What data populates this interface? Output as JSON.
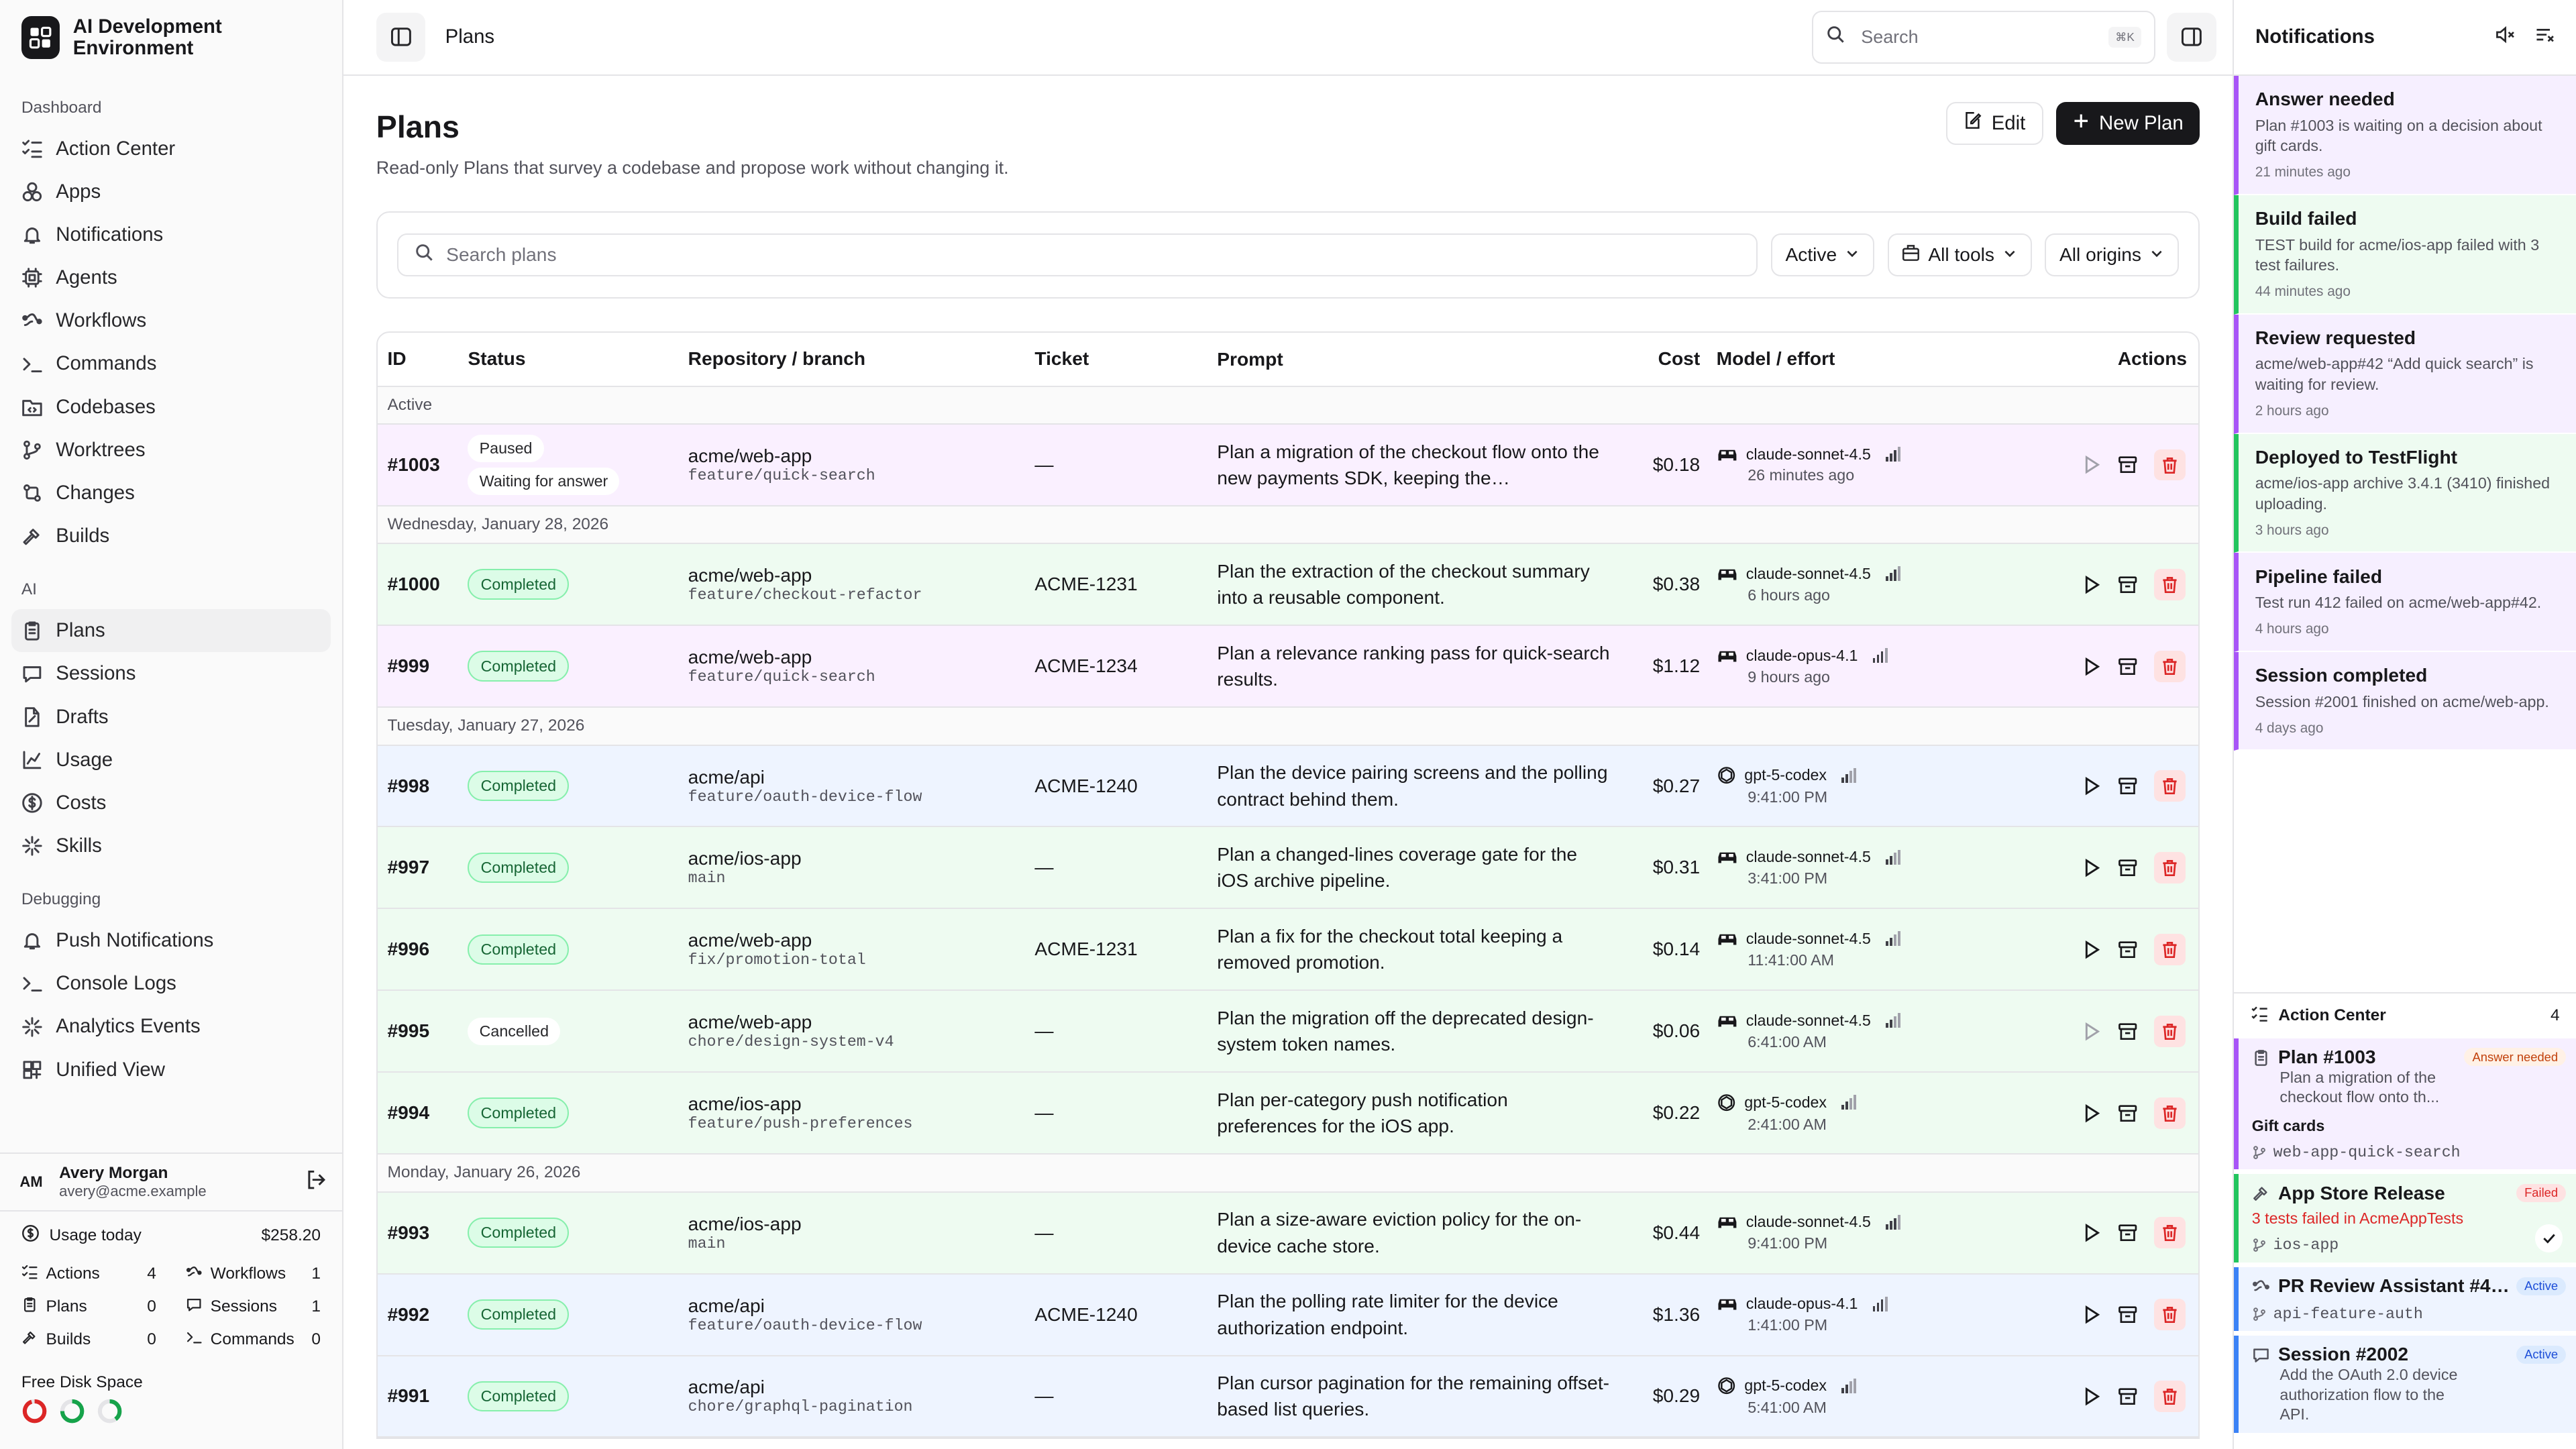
{
  "app": {
    "title": "AI Development Environment"
  },
  "sidebar": {
    "dashboard_label": "Dashboard",
    "dashboard_items": [
      {
        "label": "Action Center",
        "icon": "list-checks-icon"
      },
      {
        "label": "Apps",
        "icon": "apps-icon"
      },
      {
        "label": "Notifications",
        "icon": "bell-icon"
      },
      {
        "label": "Agents",
        "icon": "cpu-icon"
      },
      {
        "label": "Workflows",
        "icon": "workflow-icon"
      },
      {
        "label": "Commands",
        "icon": "terminal-icon"
      },
      {
        "label": "Codebases",
        "icon": "folder-code-icon"
      },
      {
        "label": "Worktrees",
        "icon": "git-branch-icon"
      },
      {
        "label": "Changes",
        "icon": "git-compare-icon"
      },
      {
        "label": "Builds",
        "icon": "hammer-icon"
      }
    ],
    "ai_label": "AI",
    "ai_items": [
      {
        "label": "Plans",
        "icon": "clipboard-icon",
        "active": true
      },
      {
        "label": "Sessions",
        "icon": "chat-icon"
      },
      {
        "label": "Drafts",
        "icon": "file-edit-icon"
      },
      {
        "label": "Usage",
        "icon": "chart-icon"
      },
      {
        "label": "Costs",
        "icon": "dollar-icon"
      },
      {
        "label": "Skills",
        "icon": "sparkles-icon"
      }
    ],
    "debug_label": "Debugging",
    "debug_items": [
      {
        "label": "Push Notifications",
        "icon": "bell-icon"
      },
      {
        "label": "Console Logs",
        "icon": "terminal-icon"
      },
      {
        "label": "Analytics Events",
        "icon": "sparkles-icon"
      },
      {
        "label": "Unified View",
        "icon": "layout-icon"
      }
    ],
    "user": {
      "initials": "AM",
      "name": "Avery Morgan",
      "email": "avery@acme.example"
    },
    "usage": {
      "label": "Usage today",
      "amount": "$258.20",
      "stats": [
        {
          "label": "Actions",
          "value": "4",
          "icon": "list-checks-icon"
        },
        {
          "label": "Workflows",
          "value": "1",
          "icon": "workflow-icon"
        },
        {
          "label": "Plans",
          "value": "0",
          "icon": "clipboard-icon"
        },
        {
          "label": "Sessions",
          "value": "1",
          "icon": "chat-icon"
        },
        {
          "label": "Builds",
          "value": "0",
          "icon": "hammer-icon"
        },
        {
          "label": "Commands",
          "value": "0",
          "icon": "terminal-icon"
        }
      ]
    },
    "disk": {
      "label": "Free Disk Space",
      "levels": [
        0.95,
        0.75,
        0.4
      ],
      "colors": [
        "#dc2626",
        "#16a34a",
        "#16a34a"
      ]
    }
  },
  "topbar": {
    "breadcrumb": "Plans",
    "search_placeholder": "Search",
    "shortcut": "⌘K"
  },
  "page": {
    "title": "Plans",
    "subtitle": "Read-only Plans that survey a codebase and propose work without changing it.",
    "edit_label": "Edit",
    "new_label": "New Plan",
    "search_placeholder": "Search plans",
    "filters": [
      "Active",
      "All tools",
      "All origins"
    ]
  },
  "table": {
    "headers": {
      "id": "ID",
      "status": "Status",
      "repo": "Repository / branch",
      "ticket": "Ticket",
      "prompt": "Prompt",
      "cost": "Cost",
      "model": "Model / effort",
      "actions": "Actions"
    },
    "groups": [
      {
        "label": "Active",
        "rows": [
          {
            "id": "#1003",
            "status": [
              "Paused",
              "Waiting for answer"
            ],
            "repo": "acme/web-app",
            "branch": "feature/quick-search",
            "ticket": "—",
            "prompt": "Plan a migration of the checkout flow onto the new payments SDK, keeping the…",
            "cost": "$0.18",
            "model": "claude-sonnet-4.5",
            "model_icon": "car-icon",
            "time": "26 minutes ago",
            "effort": 3,
            "bg": "#faf0ff",
            "play_disabled": true
          }
        ]
      },
      {
        "label": "Wednesday, January 28, 2026",
        "rows": [
          {
            "id": "#1000",
            "status": [
              "Completed"
            ],
            "repo": "acme/web-app",
            "branch": "feature/checkout-refactor",
            "ticket": "ACME-1231",
            "prompt": "Plan the extraction of the checkout summary into a reusable component.",
            "cost": "$0.38",
            "model": "claude-sonnet-4.5",
            "model_icon": "car-icon",
            "time": "6 hours ago",
            "effort": 3,
            "bg": "#eefbf1"
          },
          {
            "id": "#999",
            "status": [
              "Completed"
            ],
            "repo": "acme/web-app",
            "branch": "feature/quick-search",
            "ticket": "ACME-1234",
            "prompt": "Plan a relevance ranking pass for quick-search results.",
            "cost": "$1.12",
            "model": "claude-opus-4.1",
            "model_icon": "car-icon",
            "time": "9 hours ago",
            "effort": 3,
            "bg": "#faf0ff"
          }
        ]
      },
      {
        "label": "Tuesday, January 27, 2026",
        "rows": [
          {
            "id": "#998",
            "status": [
              "Completed"
            ],
            "repo": "acme/api",
            "branch": "feature/oauth-device-flow",
            "ticket": "ACME-1240",
            "prompt": "Plan the device pairing screens and the polling contract behind them.",
            "cost": "$0.27",
            "model": "gpt-5-codex",
            "model_icon": "openai-icon",
            "time": "9:41:00 PM",
            "effort": 2,
            "bg": "#eef4ff"
          },
          {
            "id": "#997",
            "status": [
              "Completed"
            ],
            "repo": "acme/ios-app",
            "branch": "main",
            "ticket": "—",
            "prompt": "Plan a changed-lines coverage gate for the iOS archive pipeline.",
            "cost": "$0.31",
            "model": "claude-sonnet-4.5",
            "model_icon": "car-icon",
            "time": "3:41:00 PM",
            "effort": 2,
            "bg": "#eefbf1"
          },
          {
            "id": "#996",
            "status": [
              "Completed"
            ],
            "repo": "acme/web-app",
            "branch": "fix/promotion-total",
            "ticket": "ACME-1231",
            "prompt": "Plan a fix for the checkout total keeping a removed promotion.",
            "cost": "$0.14",
            "model": "claude-sonnet-4.5",
            "model_icon": "car-icon",
            "time": "11:41:00 AM",
            "effort": 2,
            "bg": "#eefbf1"
          },
          {
            "id": "#995",
            "status": [
              "Cancelled"
            ],
            "repo": "acme/web-app",
            "branch": "chore/design-system-v4",
            "ticket": "—",
            "prompt": "Plan the migration off the deprecated design-system token names.",
            "cost": "$0.06",
            "model": "claude-sonnet-4.5",
            "model_icon": "car-icon",
            "time": "6:41:00 AM",
            "effort": 2,
            "bg": "#eefbf1",
            "play_disabled": true
          },
          {
            "id": "#994",
            "status": [
              "Completed"
            ],
            "repo": "acme/ios-app",
            "branch": "feature/push-preferences",
            "ticket": "—",
            "prompt": "Plan per-category push notification preferences for the iOS app.",
            "cost": "$0.22",
            "model": "gpt-5-codex",
            "model_icon": "openai-icon",
            "time": "2:41:00 AM",
            "effort": 2,
            "bg": "#eefbf1"
          }
        ]
      },
      {
        "label": "Monday, January 26, 2026",
        "rows": [
          {
            "id": "#993",
            "status": [
              "Completed"
            ],
            "repo": "acme/ios-app",
            "branch": "main",
            "ticket": "—",
            "prompt": "Plan a size-aware eviction policy for the on-device cache store.",
            "cost": "$0.44",
            "model": "claude-sonnet-4.5",
            "model_icon": "car-icon",
            "time": "9:41:00 PM",
            "effort": 3,
            "bg": "#eefbf1"
          },
          {
            "id": "#992",
            "status": [
              "Completed"
            ],
            "repo": "acme/api",
            "branch": "feature/oauth-device-flow",
            "ticket": "ACME-1240",
            "prompt": "Plan the polling rate limiter for the device authorization endpoint.",
            "cost": "$1.36",
            "model": "claude-opus-4.1",
            "model_icon": "car-icon",
            "time": "1:41:00 PM",
            "effort": 3,
            "bg": "#eef4ff"
          },
          {
            "id": "#991",
            "status": [
              "Completed"
            ],
            "repo": "acme/api",
            "branch": "chore/graphql-pagination",
            "ticket": "—",
            "prompt": "Plan cursor pagination for the remaining offset-based list queries.",
            "cost": "$0.29",
            "model": "gpt-5-codex",
            "model_icon": "openai-icon",
            "time": "5:41:00 AM",
            "effort": 2,
            "bg": "#eef4ff"
          }
        ]
      }
    ]
  },
  "notifications": {
    "title": "Notifications",
    "items": [
      {
        "title": "Answer needed",
        "message": "Plan #1003 is waiting on a decision about gift cards.",
        "time": "21 minutes ago",
        "bg": "#f6efff",
        "accent": "#a855f7"
      },
      {
        "title": "Build failed",
        "message": "TEST build for acme/ios-app failed with 3 test failures.",
        "time": "44 minutes ago",
        "bg": "#eefbf1",
        "accent": "#22c55e"
      },
      {
        "title": "Review requested",
        "message": "acme/web-app#42 “Add quick search” is waiting for review.",
        "time": "2 hours ago",
        "bg": "#f6efff",
        "accent": "#a855f7"
      },
      {
        "title": "Deployed to TestFlight",
        "message": "acme/ios-app archive 3.4.1 (3410) finished uploading.",
        "time": "3 hours ago",
        "bg": "#eefbf1",
        "accent": "#22c55e"
      },
      {
        "title": "Pipeline failed",
        "message": "Test run 412 failed on acme/web-app#42.",
        "time": "4 hours ago",
        "bg": "#f6efff",
        "accent": "#a855f7"
      },
      {
        "title": "Session completed",
        "message": "Session #2001 finished on acme/web-app.",
        "time": "4 days ago",
        "bg": "#f6efff",
        "accent": "#a855f7"
      }
    ]
  },
  "action_center": {
    "title": "Action Center",
    "count": "4",
    "cards": [
      {
        "title": "Plan #1003",
        "tag": "Answer needed",
        "message": "Plan a migration of the checkout flow onto th...",
        "extra": "Gift cards",
        "mono": "web-app-quick-search",
        "bg": "#f6efff",
        "accent": "#a855f7",
        "tag_bg": "#fff1e6",
        "tag_fg": "#c2410c",
        "icon": "clipboard-icon"
      },
      {
        "title": "App Store Release",
        "tag": "Failed",
        "message": "3 tests failed in AcmeAppTests",
        "mono": "ios-app",
        "bg": "#eefbf1",
        "accent": "#22c55e",
        "tag_bg": "#fee2e2",
        "tag_fg": "#dc2626",
        "icon": "hammer-icon",
        "msg_color": "#dc2626"
      },
      {
        "title": "PR Review Assistant #4…",
        "tag": "Active",
        "mono": "api-feature-auth",
        "bg": "#eef4ff",
        "accent": "#3b82f6",
        "tag_bg": "#dbeafe",
        "tag_fg": "#1d4ed8",
        "icon": "workflow-icon"
      },
      {
        "title": "Session #2002",
        "tag": "Active",
        "message": "Add the OAuth 2.0 device authorization flow to the API.",
        "bg": "#eef4ff",
        "accent": "#3b82f6",
        "tag_bg": "#dbeafe",
        "tag_fg": "#1d4ed8",
        "icon": "chat-icon"
      }
    ]
  }
}
